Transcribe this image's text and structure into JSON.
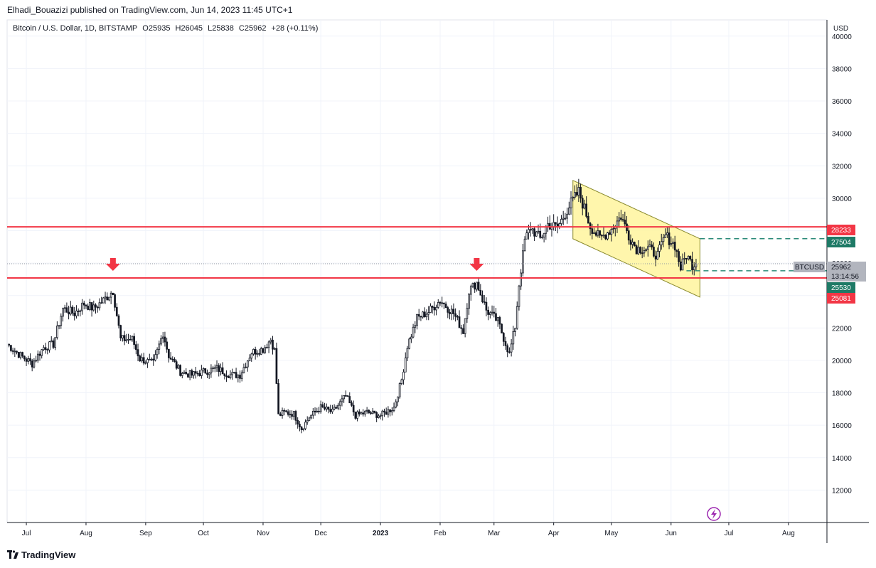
{
  "header": {
    "published": "Elhadi_Bouazizi published on TradingView.com, Jun 14, 2023 11:45 UTC+1"
  },
  "legend": {
    "symbol": "Bitcoin / U.S. Dollar, 1D, BITSTAMP",
    "open": "O25935",
    "high": "H26045",
    "low": "L25838",
    "close": "C25962",
    "change": "+28 (+0.11%)"
  },
  "price_axis": {
    "currency": "USD",
    "ticks": [
      "40000",
      "38000",
      "36000",
      "34000",
      "32000",
      "30000",
      "28000",
      "26000",
      "24000",
      "22000",
      "20000",
      "18000",
      "16000",
      "14000",
      "12000"
    ]
  },
  "time_axis": {
    "ticks": [
      "Jul",
      "Aug",
      "Sep",
      "Oct",
      "Nov",
      "Dec",
      "2023",
      "Feb",
      "Mar",
      "Apr",
      "May",
      "Jun",
      "Jul",
      "Aug"
    ]
  },
  "price_labels": {
    "resistance": "28233",
    "channel_top": "27504",
    "symbol_tag": "BTCUSD",
    "last": "25962",
    "countdown": "13:14:56",
    "channel_bottom": "25530",
    "support": "25081"
  },
  "colors": {
    "candle": "#131722",
    "level_line": "#f23645",
    "channel_fill": "#fff59d",
    "channel_border": "#8a8a2e",
    "dashed": "#2b8a78",
    "arrow": "#f23645",
    "grid": "#f0f3fa"
  },
  "footer": {
    "brand": "TradingView"
  },
  "icons": {
    "arrow": "arrow-down-icon",
    "lightning": "lightning-icon"
  },
  "chart_data": {
    "type": "candlestick",
    "title": "",
    "xlabel": "",
    "ylabel": "",
    "ylim": [
      10000,
      41000
    ],
    "xrange": [
      "2022-06-21",
      "2023-08-21"
    ],
    "grid": true,
    "horizontal_levels": [
      28233,
      25081
    ],
    "channel": {
      "upper": [
        [
          "2023-04-11",
          31100
        ],
        [
          "2023-06-16",
          27504
        ]
      ],
      "lower": [
        [
          "2023-04-11",
          27500
        ],
        [
          "2023-06-16",
          23900
        ]
      ]
    },
    "dashed_levels": [
      27504,
      25530
    ],
    "markers": [
      {
        "date": "2022-08-15",
        "type": "arrow-down"
      },
      {
        "date": "2023-02-20",
        "type": "arrow-down"
      }
    ],
    "series": [
      {
        "values": [
          [
            "2022-06-21",
            21000
          ],
          [
            "2022-06-28",
            20300
          ],
          [
            "2022-07-04",
            19800
          ],
          [
            "2022-07-10",
            20800
          ],
          [
            "2022-07-15",
            21000
          ],
          [
            "2022-07-20",
            23200
          ],
          [
            "2022-07-26",
            22900
          ],
          [
            "2022-07-31",
            23500
          ],
          [
            "2022-08-05",
            23200
          ],
          [
            "2022-08-10",
            23700
          ],
          [
            "2022-08-15",
            24300
          ],
          [
            "2022-08-19",
            21300
          ],
          [
            "2022-08-25",
            21300
          ],
          [
            "2022-08-29",
            20100
          ],
          [
            "2022-09-05",
            19800
          ],
          [
            "2022-09-10",
            21700
          ],
          [
            "2022-09-13",
            20300
          ],
          [
            "2022-09-19",
            19300
          ],
          [
            "2022-09-25",
            19100
          ],
          [
            "2022-10-01",
            19300
          ],
          [
            "2022-10-08",
            19500
          ],
          [
            "2022-10-15",
            19100
          ],
          [
            "2022-10-20",
            19100
          ],
          [
            "2022-10-26",
            20500
          ],
          [
            "2022-11-01",
            20700
          ],
          [
            "2022-11-05",
            21300
          ],
          [
            "2022-11-07",
            20600
          ],
          [
            "2022-11-09",
            16600
          ],
          [
            "2022-11-12",
            16800
          ],
          [
            "2022-11-17",
            16700
          ],
          [
            "2022-11-21",
            15800
          ],
          [
            "2022-11-25",
            16500
          ],
          [
            "2022-12-01",
            17100
          ],
          [
            "2022-12-07",
            16800
          ],
          [
            "2022-12-14",
            17800
          ],
          [
            "2022-12-19",
            16600
          ],
          [
            "2022-12-25",
            16800
          ],
          [
            "2023-01-01",
            16600
          ],
          [
            "2023-01-08",
            17100
          ],
          [
            "2023-01-12",
            18800
          ],
          [
            "2023-01-15",
            20900
          ],
          [
            "2023-01-20",
            22600
          ],
          [
            "2023-01-26",
            23000
          ],
          [
            "2023-02-01",
            23700
          ],
          [
            "2023-02-08",
            22900
          ],
          [
            "2023-02-13",
            21800
          ],
          [
            "2023-02-16",
            24300
          ],
          [
            "2023-02-20",
            24800
          ],
          [
            "2023-02-25",
            23100
          ],
          [
            "2023-03-03",
            22400
          ],
          [
            "2023-03-09",
            20400
          ],
          [
            "2023-03-12",
            22100
          ],
          [
            "2023-03-14",
            24700
          ],
          [
            "2023-03-17",
            27400
          ],
          [
            "2023-03-20",
            28200
          ],
          [
            "2023-03-25",
            27500
          ],
          [
            "2023-03-29",
            28400
          ],
          [
            "2023-04-03",
            28200
          ],
          [
            "2023-04-10",
            29700
          ],
          [
            "2023-04-14",
            30400
          ],
          [
            "2023-04-20",
            28300
          ],
          [
            "2023-04-25",
            27500
          ],
          [
            "2023-05-01",
            28100
          ],
          [
            "2023-05-06",
            28900
          ],
          [
            "2023-05-10",
            27700
          ],
          [
            "2023-05-14",
            26900
          ],
          [
            "2023-05-20",
            26900
          ],
          [
            "2023-05-25",
            26500
          ],
          [
            "2023-05-29",
            27700
          ],
          [
            "2023-06-03",
            27100
          ],
          [
            "2023-06-06",
            25700
          ],
          [
            "2023-06-09",
            26500
          ],
          [
            "2023-06-12",
            25900
          ],
          [
            "2023-06-14",
            25962
          ]
        ]
      }
    ]
  }
}
